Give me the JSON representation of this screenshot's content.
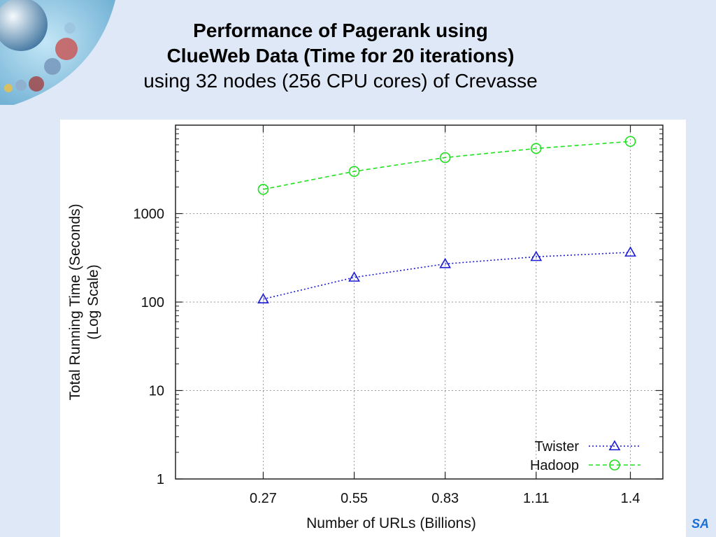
{
  "slide": {
    "title_line1": "Performance of Pagerank using",
    "title_line2": "ClueWeb Data (Time for 20 iterations)",
    "title_line3": "using 32 nodes (256 CPU cores) of Crevasse",
    "corner_logo_text": "SA"
  },
  "chart_data": {
    "type": "line",
    "y_scale": "log",
    "xlabel": "Number of URLs (Billions)",
    "ylabel_line1": "Total Running Time (Seconds)",
    "ylabel_line2": "(Log Scale)",
    "x_ticks": [
      "0.27",
      "0.55",
      "0.83",
      "1.11",
      "1.4"
    ],
    "x_tick_values": [
      0.27,
      0.55,
      0.83,
      1.11,
      1.4
    ],
    "xlim": [
      0.0,
      1.5
    ],
    "y_ticks": [
      "1",
      "10",
      "100",
      "1000"
    ],
    "y_tick_values": [
      1,
      10,
      100,
      1000
    ],
    "ylim": [
      1,
      10000
    ],
    "grid": true,
    "legend_position": "bottom-right",
    "series": [
      {
        "name": "Twister",
        "color": "#1a1ad6",
        "marker": "triangle",
        "dash": "dotted",
        "x": [
          0.27,
          0.55,
          0.83,
          1.11,
          1.4
        ],
        "y": [
          108,
          190,
          270,
          325,
          365
        ]
      },
      {
        "name": "Hadoop",
        "color": "#1ee01e",
        "marker": "circle",
        "dash": "dashed",
        "x": [
          0.27,
          0.55,
          0.83,
          1.11,
          1.4
        ],
        "y": [
          1880,
          3000,
          4300,
          5450,
          6550
        ]
      }
    ]
  }
}
